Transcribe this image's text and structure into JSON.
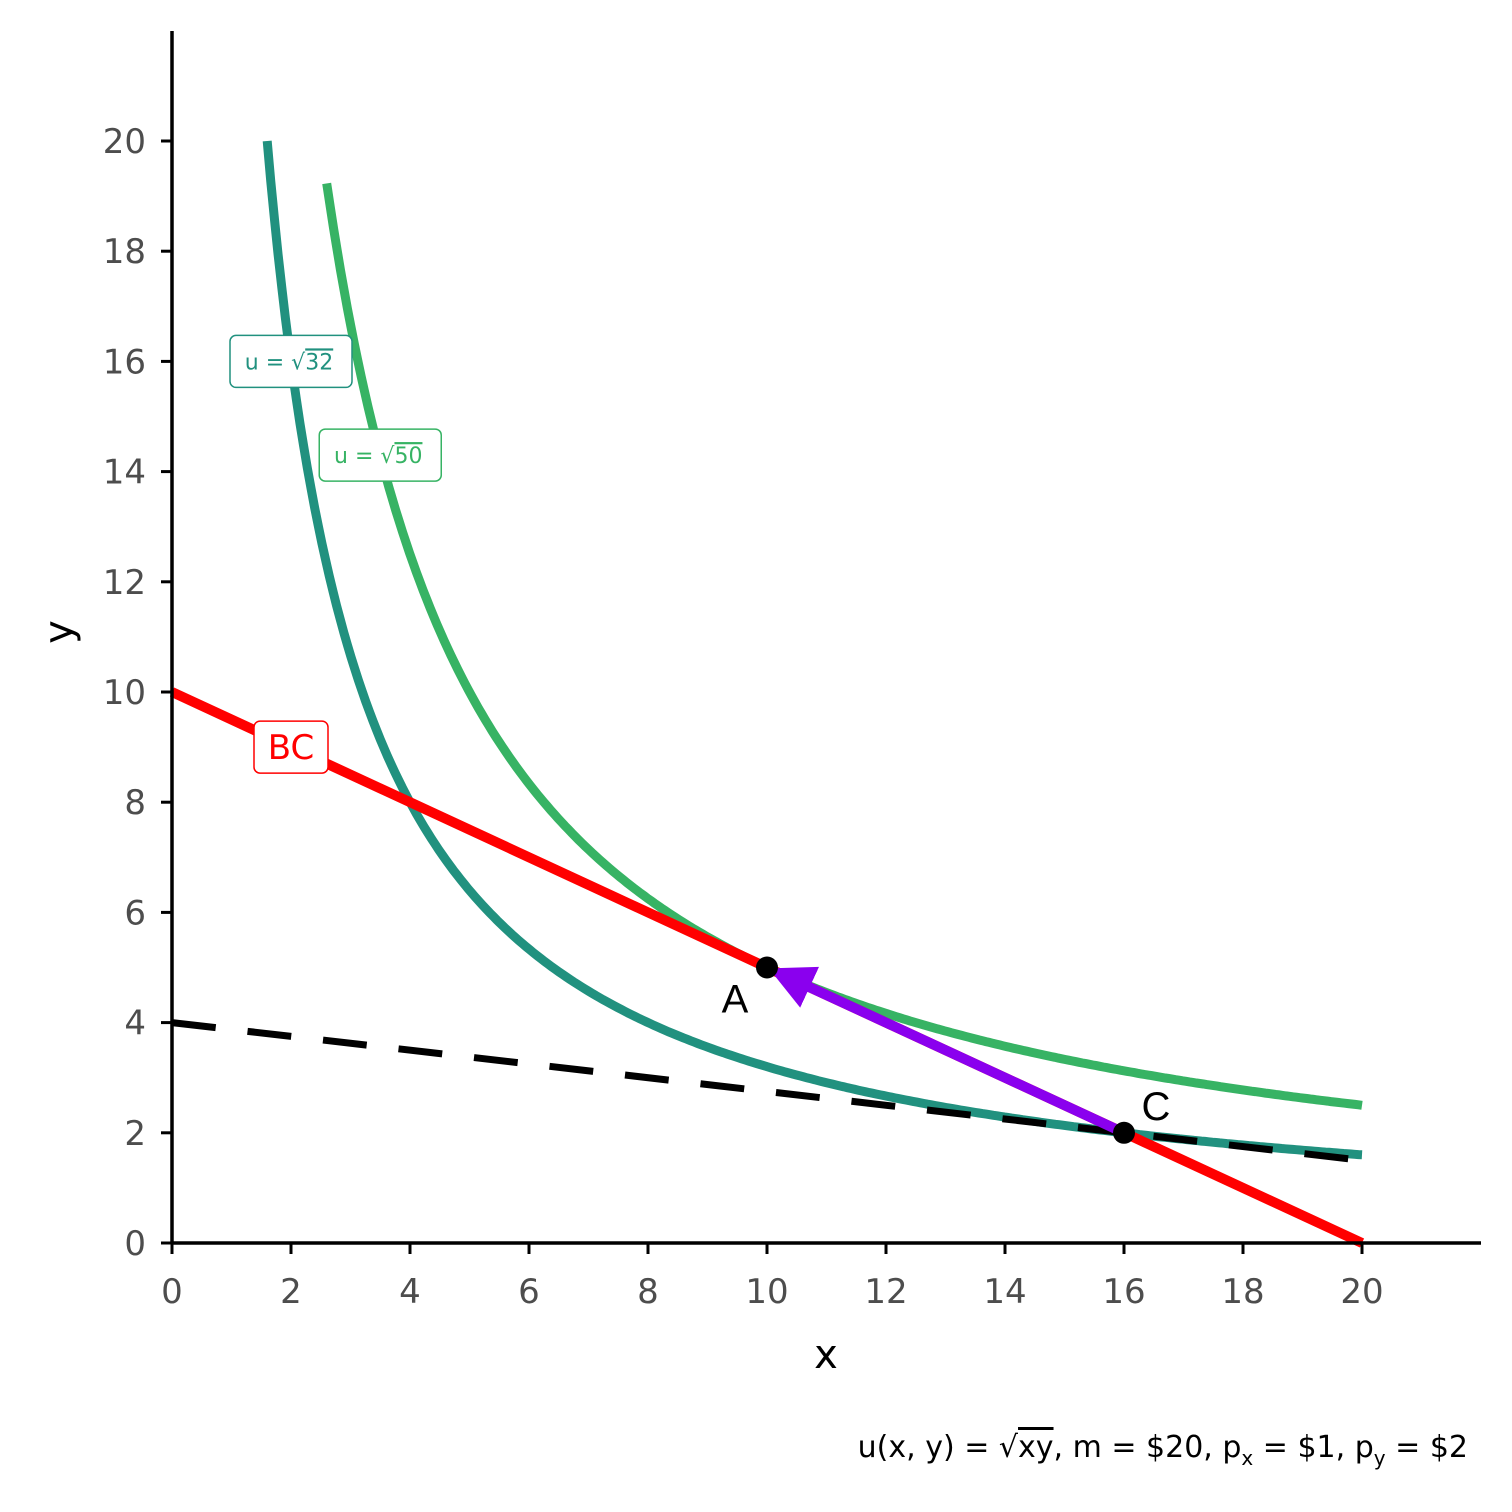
{
  "chart_data": {
    "type": "line",
    "xlabel": "x",
    "ylabel": "y",
    "xlim": [
      0,
      22
    ],
    "ylim": [
      0,
      22
    ],
    "x_ticks": [
      0,
      2,
      4,
      6,
      8,
      10,
      12,
      14,
      16,
      18,
      20
    ],
    "y_ticks": [
      0,
      2,
      4,
      6,
      8,
      10,
      12,
      14,
      16,
      18,
      20
    ],
    "grid": false,
    "series": [
      {
        "kind": "indifference_curve",
        "name": "u = √32",
        "label_prefix": "u = ",
        "label_radicand": "32",
        "product": 32,
        "x_range": [
          1.6,
          20
        ],
        "color": "#21917f",
        "label_at": [
          2,
          16
        ]
      },
      {
        "kind": "indifference_curve",
        "name": "u = √50",
        "label_prefix": "u = ",
        "label_radicand": "50",
        "product": 50,
        "x_range": [
          2.6,
          20
        ],
        "color": "#37b364",
        "label_at": [
          3.5,
          14.3
        ]
      },
      {
        "kind": "budget_line",
        "name": "BC",
        "points": [
          [
            0,
            10
          ],
          [
            20,
            0
          ]
        ],
        "color": "#ff0000",
        "label_at": [
          2,
          9
        ]
      },
      {
        "kind": "dashed_line",
        "points": [
          [
            0,
            4
          ],
          [
            20,
            1.5
          ]
        ],
        "color": "#000000"
      }
    ],
    "points": [
      {
        "label": "A",
        "x": 10,
        "y": 5
      },
      {
        "label": "C",
        "x": 16,
        "y": 2
      }
    ],
    "arrow": {
      "from": [
        16,
        2
      ],
      "to": [
        10,
        5
      ],
      "color": "#8a00ee"
    },
    "caption": {
      "func": "u(x, y) = ",
      "radicand": "xy",
      "m": ", m = $20, p",
      "px_sub": "x",
      "px_val": " = $1, p",
      "py_sub": "y",
      "py_val": " = $2"
    }
  }
}
